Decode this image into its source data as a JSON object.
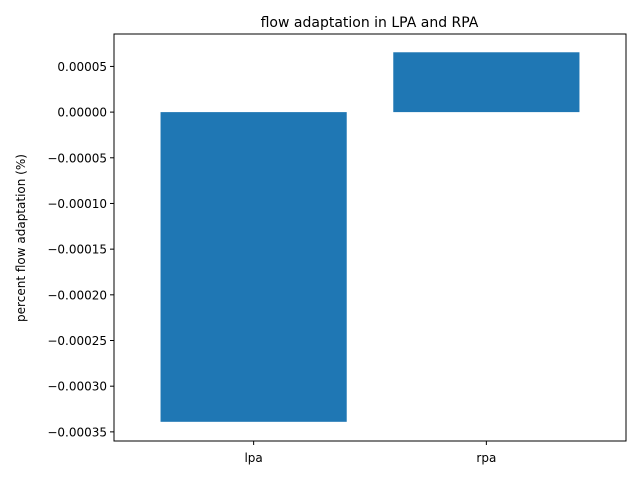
{
  "chart_data": {
    "type": "bar",
    "title": "flow adaptation in LPA and RPA",
    "xlabel": "",
    "ylabel": "percent flow adaptation (%)",
    "categories": [
      "lpa",
      "rpa"
    ],
    "values": [
      -0.000339,
      6.55e-05
    ],
    "ylim": [
      -0.00036,
      8.55e-05
    ],
    "yticks": [
      5e-05,
      0.0,
      -5e-05,
      -0.0001,
      -0.00015,
      -0.0002,
      -0.00025,
      -0.0003,
      -0.00035
    ],
    "ytick_labels": [
      "0.00005",
      "0.00000",
      "−0.00005",
      "−0.00010",
      "−0.00015",
      "−0.00020",
      "−0.00025",
      "−0.00030",
      "−0.00035"
    ],
    "grid": false,
    "legend": "none",
    "bar_color": "#1f77b4"
  }
}
